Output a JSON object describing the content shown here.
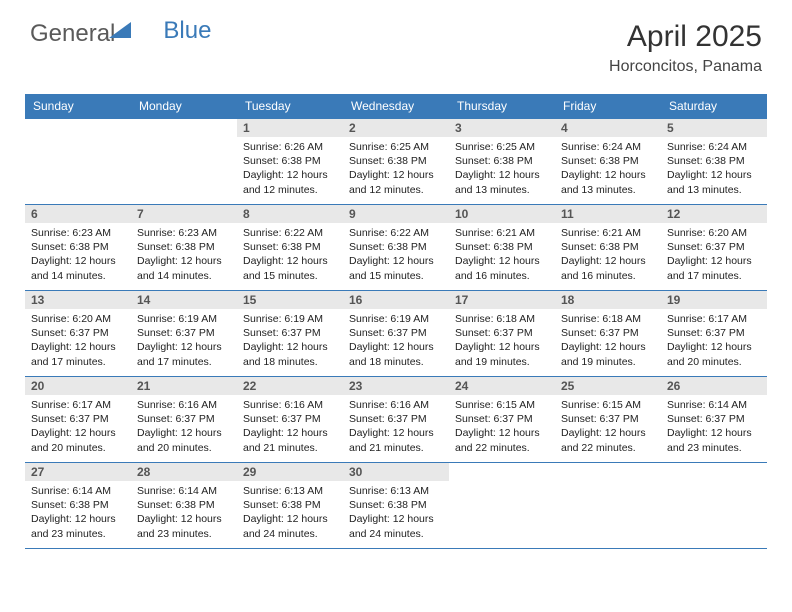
{
  "brand": {
    "part1": "General",
    "part2": "Blue"
  },
  "title": "April 2025",
  "location": "Horconcitos, Panama",
  "header_color": "#3a7ab8",
  "header_text_color": "#ffffff",
  "daynum_bg": "#e8e8e8",
  "border_color": "#3a7ab8",
  "weekdays": [
    "Sunday",
    "Monday",
    "Tuesday",
    "Wednesday",
    "Thursday",
    "Friday",
    "Saturday"
  ],
  "weeks": [
    [
      null,
      null,
      {
        "n": "1",
        "sr": "6:26 AM",
        "ss": "6:38 PM",
        "dl": "12 hours and 12 minutes."
      },
      {
        "n": "2",
        "sr": "6:25 AM",
        "ss": "6:38 PM",
        "dl": "12 hours and 12 minutes."
      },
      {
        "n": "3",
        "sr": "6:25 AM",
        "ss": "6:38 PM",
        "dl": "12 hours and 13 minutes."
      },
      {
        "n": "4",
        "sr": "6:24 AM",
        "ss": "6:38 PM",
        "dl": "12 hours and 13 minutes."
      },
      {
        "n": "5",
        "sr": "6:24 AM",
        "ss": "6:38 PM",
        "dl": "12 hours and 13 minutes."
      }
    ],
    [
      {
        "n": "6",
        "sr": "6:23 AM",
        "ss": "6:38 PM",
        "dl": "12 hours and 14 minutes."
      },
      {
        "n": "7",
        "sr": "6:23 AM",
        "ss": "6:38 PM",
        "dl": "12 hours and 14 minutes."
      },
      {
        "n": "8",
        "sr": "6:22 AM",
        "ss": "6:38 PM",
        "dl": "12 hours and 15 minutes."
      },
      {
        "n": "9",
        "sr": "6:22 AM",
        "ss": "6:38 PM",
        "dl": "12 hours and 15 minutes."
      },
      {
        "n": "10",
        "sr": "6:21 AM",
        "ss": "6:38 PM",
        "dl": "12 hours and 16 minutes."
      },
      {
        "n": "11",
        "sr": "6:21 AM",
        "ss": "6:38 PM",
        "dl": "12 hours and 16 minutes."
      },
      {
        "n": "12",
        "sr": "6:20 AM",
        "ss": "6:37 PM",
        "dl": "12 hours and 17 minutes."
      }
    ],
    [
      {
        "n": "13",
        "sr": "6:20 AM",
        "ss": "6:37 PM",
        "dl": "12 hours and 17 minutes."
      },
      {
        "n": "14",
        "sr": "6:19 AM",
        "ss": "6:37 PM",
        "dl": "12 hours and 17 minutes."
      },
      {
        "n": "15",
        "sr": "6:19 AM",
        "ss": "6:37 PM",
        "dl": "12 hours and 18 minutes."
      },
      {
        "n": "16",
        "sr": "6:19 AM",
        "ss": "6:37 PM",
        "dl": "12 hours and 18 minutes."
      },
      {
        "n": "17",
        "sr": "6:18 AM",
        "ss": "6:37 PM",
        "dl": "12 hours and 19 minutes."
      },
      {
        "n": "18",
        "sr": "6:18 AM",
        "ss": "6:37 PM",
        "dl": "12 hours and 19 minutes."
      },
      {
        "n": "19",
        "sr": "6:17 AM",
        "ss": "6:37 PM",
        "dl": "12 hours and 20 minutes."
      }
    ],
    [
      {
        "n": "20",
        "sr": "6:17 AM",
        "ss": "6:37 PM",
        "dl": "12 hours and 20 minutes."
      },
      {
        "n": "21",
        "sr": "6:16 AM",
        "ss": "6:37 PM",
        "dl": "12 hours and 20 minutes."
      },
      {
        "n": "22",
        "sr": "6:16 AM",
        "ss": "6:37 PM",
        "dl": "12 hours and 21 minutes."
      },
      {
        "n": "23",
        "sr": "6:16 AM",
        "ss": "6:37 PM",
        "dl": "12 hours and 21 minutes."
      },
      {
        "n": "24",
        "sr": "6:15 AM",
        "ss": "6:37 PM",
        "dl": "12 hours and 22 minutes."
      },
      {
        "n": "25",
        "sr": "6:15 AM",
        "ss": "6:37 PM",
        "dl": "12 hours and 22 minutes."
      },
      {
        "n": "26",
        "sr": "6:14 AM",
        "ss": "6:37 PM",
        "dl": "12 hours and 23 minutes."
      }
    ],
    [
      {
        "n": "27",
        "sr": "6:14 AM",
        "ss": "6:38 PM",
        "dl": "12 hours and 23 minutes."
      },
      {
        "n": "28",
        "sr": "6:14 AM",
        "ss": "6:38 PM",
        "dl": "12 hours and 23 minutes."
      },
      {
        "n": "29",
        "sr": "6:13 AM",
        "ss": "6:38 PM",
        "dl": "12 hours and 24 minutes."
      },
      {
        "n": "30",
        "sr": "6:13 AM",
        "ss": "6:38 PM",
        "dl": "12 hours and 24 minutes."
      },
      null,
      null,
      null
    ]
  ],
  "labels": {
    "sunrise": "Sunrise:",
    "sunset": "Sunset:",
    "daylight": "Daylight:"
  }
}
